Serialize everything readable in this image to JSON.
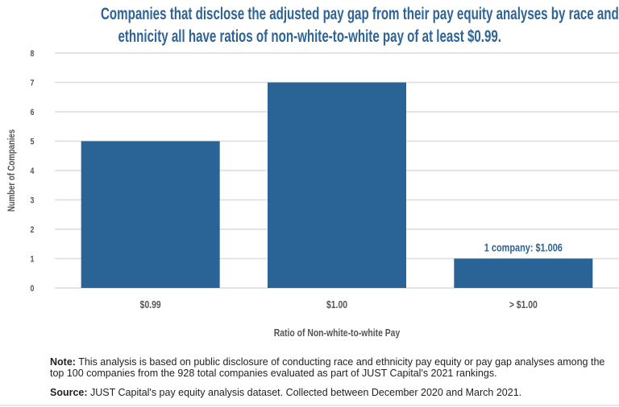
{
  "chart_data": {
    "type": "bar",
    "title": "Companies that disclose the adjusted pay gap from their pay equity analyses by race and ethnicity all have ratios of non-white-to-white pay of at least $0.99.",
    "title_lines": [
      "Companies that disclose the adjusted pay gap from their pay equity analyses by race and",
      "ethnicity all have ratios of non-white-to-white pay of at least $0.99."
    ],
    "categories": [
      "$0.99",
      "$1.00",
      "> $1.00"
    ],
    "values": [
      5,
      7,
      1
    ],
    "xlabel": "Ratio of Non-white-to-white Pay",
    "ylabel": "Number of Companies",
    "ylim": [
      0,
      8
    ],
    "yticks": [
      "0",
      "1",
      "2",
      "3",
      "4",
      "5",
      "6",
      "7",
      "8"
    ],
    "grid": true,
    "annotations": [
      {
        "category": "> $1.00",
        "text": "1 company: $1.006"
      }
    ],
    "bar_color": "#2a6496"
  },
  "footer": {
    "note_label": "Note:",
    "note_text": " This analysis is based on public disclosure of conducting race and ethnicity pay equity or pay gap analyses among the top 100 companies from the 928 total companies evaluated as part of JUST Capital's 2021 rankings.",
    "source_label": "Source:",
    "source_text": " JUST Capital's pay equity analysis dataset. Collected between December 2020 and March 2021."
  }
}
